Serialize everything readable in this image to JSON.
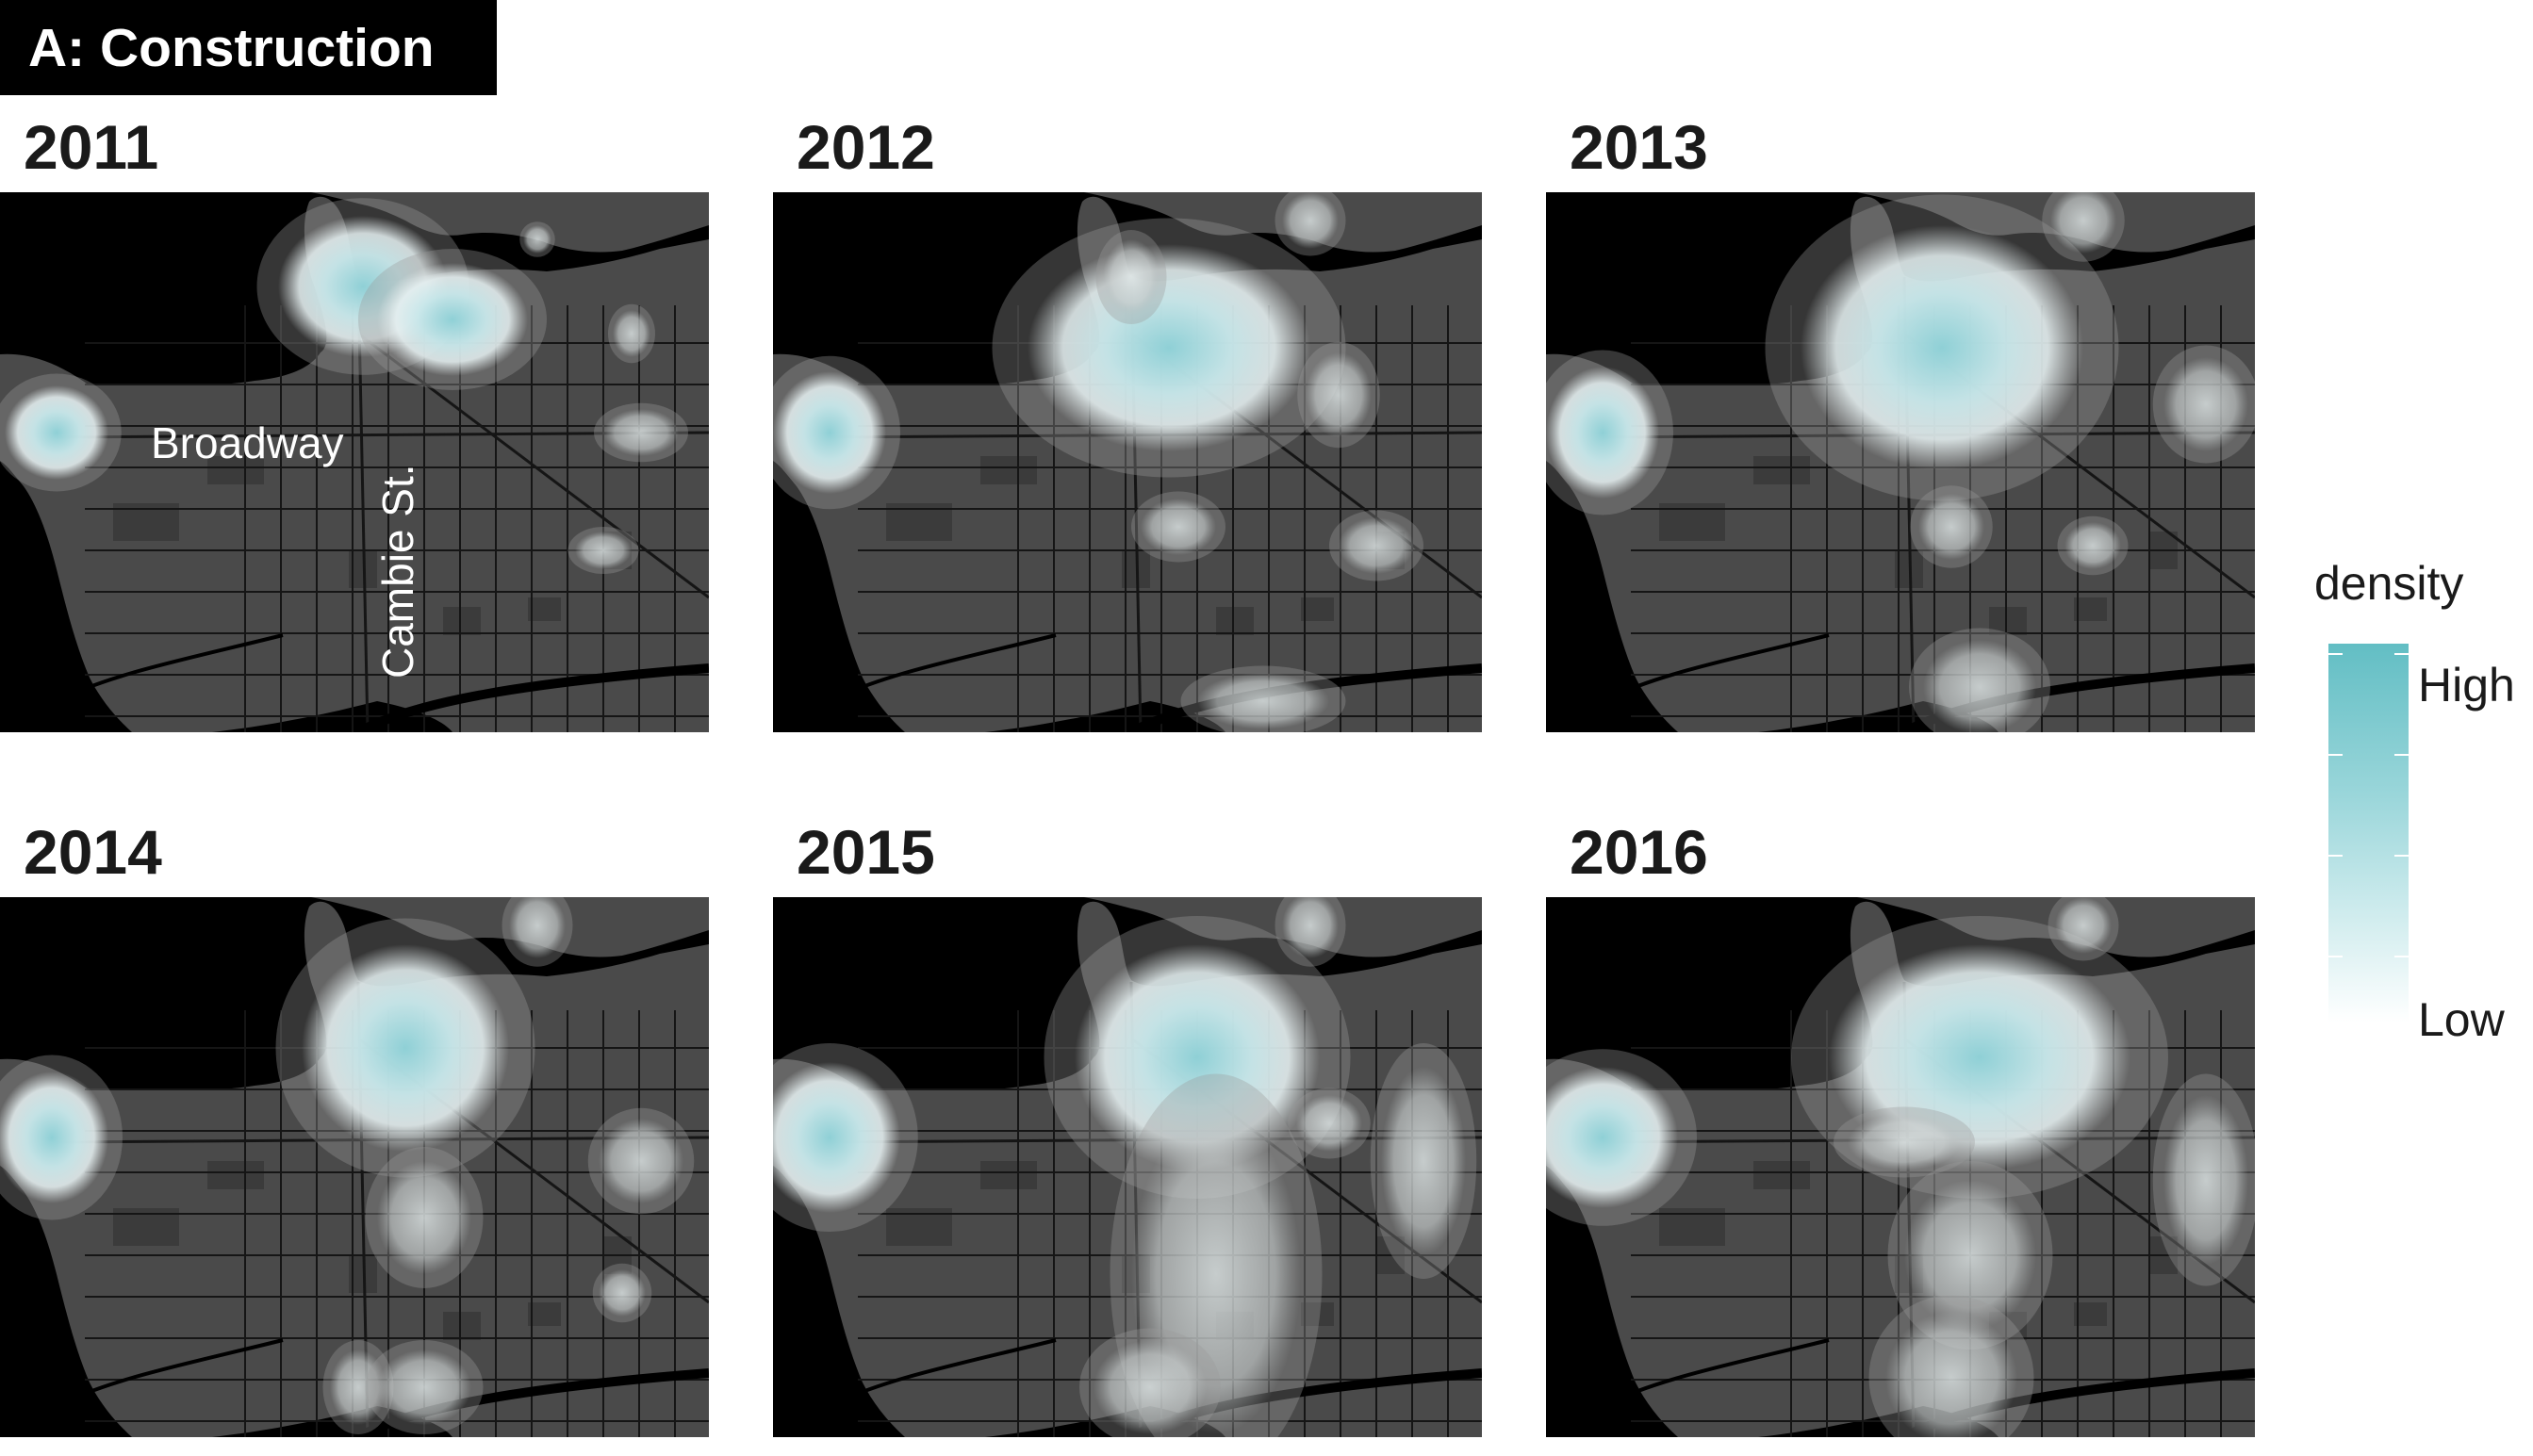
{
  "badge": "A: Construction",
  "panels": [
    {
      "year": "2011"
    },
    {
      "year": "2012"
    },
    {
      "year": "2013"
    },
    {
      "year": "2014"
    },
    {
      "year": "2015"
    },
    {
      "year": "2016"
    }
  ],
  "map_labels": {
    "street1": "Broadway",
    "street2": "Cambie St."
  },
  "legend": {
    "title": "density",
    "high": "High",
    "low": "Low"
  },
  "colors": {
    "land": "#4a4a4a",
    "water": "#000000",
    "roads": "#151515",
    "density_high": "#62bec4",
    "density_low": "#ffffff"
  }
}
